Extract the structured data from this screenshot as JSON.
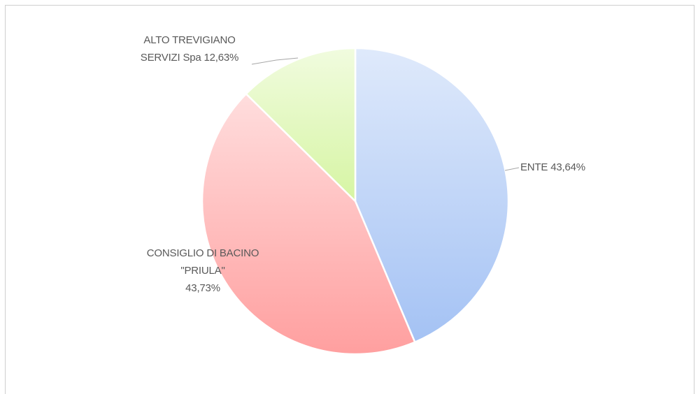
{
  "chart_data": {
    "type": "pie",
    "categories": [
      "ENTE",
      "CONSIGLIO DI BACINO \"PRIULA\"",
      "ALTO TREVIGIANO SERVIZI Spa"
    ],
    "values": [
      43.64,
      43.73,
      12.63
    ],
    "value_labels": [
      "43,64%",
      "43,73%",
      "12,63%"
    ],
    "colors": [
      "#a4c2f4",
      "#ff9f9f",
      "#d6f5a3"
    ]
  }
}
